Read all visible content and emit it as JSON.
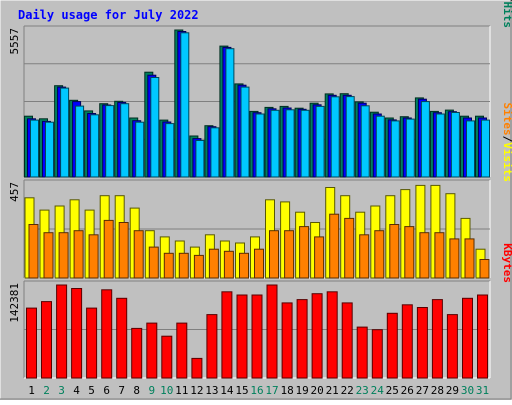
{
  "chart_data": {
    "type": "bar",
    "title": "Daily usage for July 2022",
    "categories": [
      "1",
      "2",
      "3",
      "4",
      "5",
      "6",
      "7",
      "8",
      "9",
      "10",
      "11",
      "12",
      "13",
      "14",
      "15",
      "16",
      "17",
      "18",
      "19",
      "20",
      "21",
      "22",
      "23",
      "24",
      "25",
      "26",
      "27",
      "28",
      "29",
      "30",
      "31"
    ],
    "weekend_days": [
      "2",
      "3",
      "9",
      "10",
      "16",
      "17",
      "23",
      "24",
      "30",
      "31"
    ],
    "panels": [
      {
        "id": "hits",
        "ymax_label": "5557",
        "ylim": [
          0,
          5557
        ],
        "axis_labels": [
          {
            "text": "Hits",
            "color": "#00805c"
          },
          {
            "text": "Files",
            "color": "#0000ff"
          },
          {
            "text": "Pages",
            "color": "#00c8ff"
          }
        ],
        "series": [
          {
            "name": "Hits",
            "color": "#00805c",
            "values": [
              2300,
              2200,
              3450,
              2900,
              2500,
              2770,
              2860,
              2230,
              3960,
              2150,
              5557,
              1550,
              1940,
              4950,
              3520,
              2480,
              2630,
              2670,
              2600,
              2790,
              3140,
              3150,
              2840,
              2450,
              2230,
              2280,
              2990,
              2480,
              2530,
              2300,
              2300
            ]
          },
          {
            "name": "Files",
            "color": "#0000ff",
            "values": [
              2200,
              2100,
              3400,
              2850,
              2400,
              2720,
              2820,
              2130,
              3850,
              2080,
              5500,
              1450,
              1900,
              4900,
              3470,
              2430,
              2580,
              2610,
              2560,
              2730,
              3090,
              3090,
              2790,
              2380,
              2160,
              2230,
              2940,
              2430,
              2470,
              2230,
              2230
            ]
          },
          {
            "name": "Pages",
            "color": "#00c8ff",
            "values": [
              2150,
              2070,
              3360,
              2680,
              2350,
              2700,
              2770,
              2070,
              3760,
              2020,
              5450,
              1380,
              1860,
              4850,
              3400,
              2380,
              2520,
              2540,
              2520,
              2670,
              3030,
              3040,
              2690,
              2300,
              2120,
              2190,
              2850,
              2380,
              2440,
              2120,
              2150
            ]
          }
        ]
      },
      {
        "id": "visits",
        "ymax_label": "457",
        "ylim": [
          0,
          457
        ],
        "axis_labels": [
          {
            "text": "Visits",
            "color": "#ffff00"
          },
          {
            "text": "Sites",
            "color": "#ff8000"
          }
        ],
        "series": [
          {
            "name": "Visits",
            "color": "#ffff00",
            "values": [
              390,
              330,
              350,
              380,
              330,
              400,
              400,
              340,
              230,
              200,
              180,
              150,
              210,
              180,
              170,
              200,
              380,
              370,
              320,
              270,
              440,
              400,
              320,
              350,
              400,
              430,
              450,
              450,
              410,
              290,
              140
            ]
          },
          {
            "name": "Sites",
            "color": "#ff8000",
            "values": [
              260,
              220,
              220,
              230,
              210,
              280,
              270,
              230,
              150,
              120,
              120,
              110,
              140,
              130,
              120,
              140,
              230,
              230,
              250,
              200,
              310,
              290,
              210,
              230,
              260,
              250,
              220,
              220,
              190,
              190,
              90
            ]
          }
        ]
      },
      {
        "id": "kbytes",
        "ymax_label": "142381",
        "ylim": [
          0,
          142381
        ],
        "axis_labels": [
          {
            "text": "KBytes",
            "color": "#ff0000"
          }
        ],
        "series": [
          {
            "name": "KBytes",
            "color": "#ff0000",
            "values": [
              107000,
              117000,
              142381,
              137000,
              107000,
              135000,
              122000,
              76000,
              84000,
              64000,
              84000,
              30000,
              97000,
              132000,
              127000,
              127000,
              142381,
              115000,
              120000,
              129000,
              132000,
              115000,
              78000,
              74000,
              99000,
              112000,
              108000,
              120000,
              97000,
              122000,
              127000
            ]
          }
        ]
      }
    ]
  }
}
